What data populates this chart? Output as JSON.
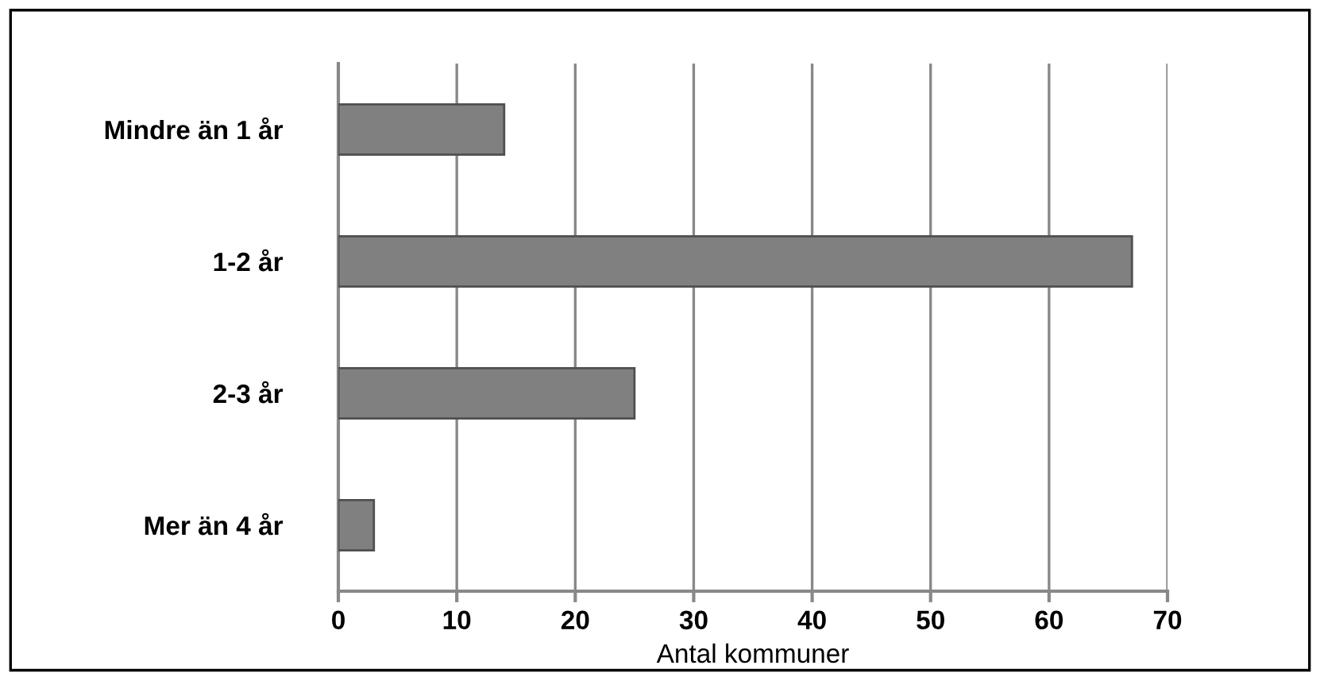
{
  "chart_data": {
    "type": "bar",
    "orientation": "horizontal",
    "xlabel": "Antal kommuner",
    "categories": [
      "Mindre än 1 år",
      "1-2 år",
      "2-3 år",
      "Mer än 4 år"
    ],
    "values": [
      14,
      67,
      25,
      3
    ],
    "color": "#808080",
    "xlim": [
      0,
      70
    ],
    "xticks": [
      0,
      10,
      20,
      30,
      40,
      50,
      60,
      70
    ],
    "grid": "x",
    "legend": false
  }
}
